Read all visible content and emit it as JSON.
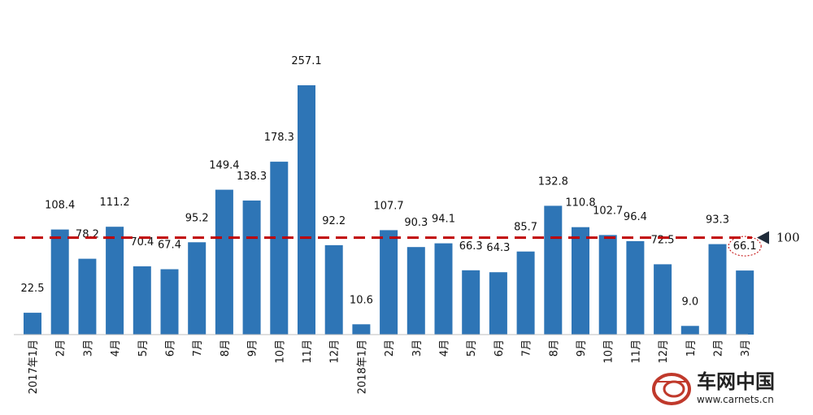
{
  "chart_data": {
    "type": "bar",
    "categories": [
      "2017年1月",
      "2月",
      "3月",
      "4月",
      "5月",
      "6月",
      "7月",
      "8月",
      "9月",
      "10月",
      "11月",
      "12月",
      "2018年1月",
      "2月",
      "3月",
      "4月",
      "5月",
      "6月",
      "7月",
      "8月",
      "9月",
      "10月",
      "11月",
      "12月",
      "1月",
      "2月",
      "3月"
    ],
    "values": [
      22.5,
      108.4,
      78.2,
      111.2,
      70.4,
      67.4,
      95.2,
      149.4,
      138.3,
      178.3,
      257.1,
      92.2,
      10.6,
      107.7,
      90.3,
      94.1,
      66.3,
      64.3,
      85.7,
      132.8,
      110.8,
      102.7,
      96.4,
      72.5,
      9.0,
      93.3,
      66.1
    ],
    "value_labels": [
      "22.5",
      "108.4",
      "78.2",
      "111.2",
      "70.4",
      "67.4",
      "95.2",
      "149.4",
      "138.3",
      "178.3",
      "257.1",
      "92.2",
      "10.6",
      "107.7",
      "90.3",
      "94.1",
      "66.3",
      "64.3",
      "85.7",
      "132.8",
      "110.8",
      "102.7",
      "96.4",
      "72.5",
      "9.0",
      "93.3",
      "66.1"
    ],
    "ylim": [
      0,
      257.1
    ],
    "reference_line": {
      "value": 100,
      "label": "100",
      "color": "#C00000"
    },
    "bar_color": "#2E75B6",
    "highlight_index": 26,
    "highlight_color": "#C00000",
    "title": "",
    "xlabel": "",
    "ylabel": "",
    "grid": false,
    "legend": "none"
  },
  "watermark": {
    "brand": "车网中国",
    "url": "www.carnets.cn"
  }
}
